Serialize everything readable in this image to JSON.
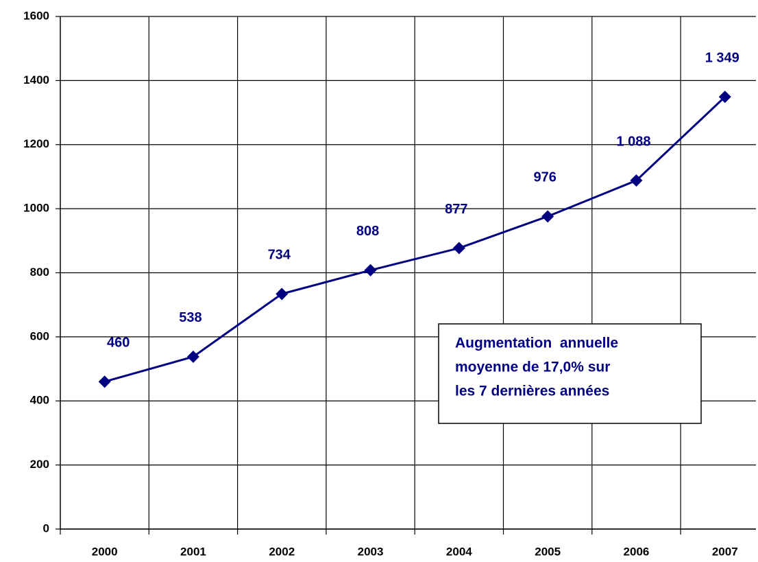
{
  "chart_data": {
    "type": "line",
    "categories": [
      "2000",
      "2001",
      "2002",
      "2003",
      "2004",
      "2005",
      "2006",
      "2007"
    ],
    "series": [
      {
        "name": null,
        "color": "#000080",
        "values": [
          460,
          538,
          734,
          808,
          877,
          976,
          1088,
          1349
        ],
        "value_labels": [
          "460",
          "538",
          "734",
          "808",
          "877",
          "976",
          "1 088",
          "1 349"
        ]
      }
    ],
    "ylim": [
      0,
      1600
    ],
    "yticks": [
      0,
      200,
      400,
      600,
      800,
      1000,
      1200,
      1400,
      1600
    ],
    "grid": true,
    "annotation": [
      "Augmentation  annuelle",
      "moyenne de 17,0% sur",
      "les 7 dernières années"
    ]
  }
}
